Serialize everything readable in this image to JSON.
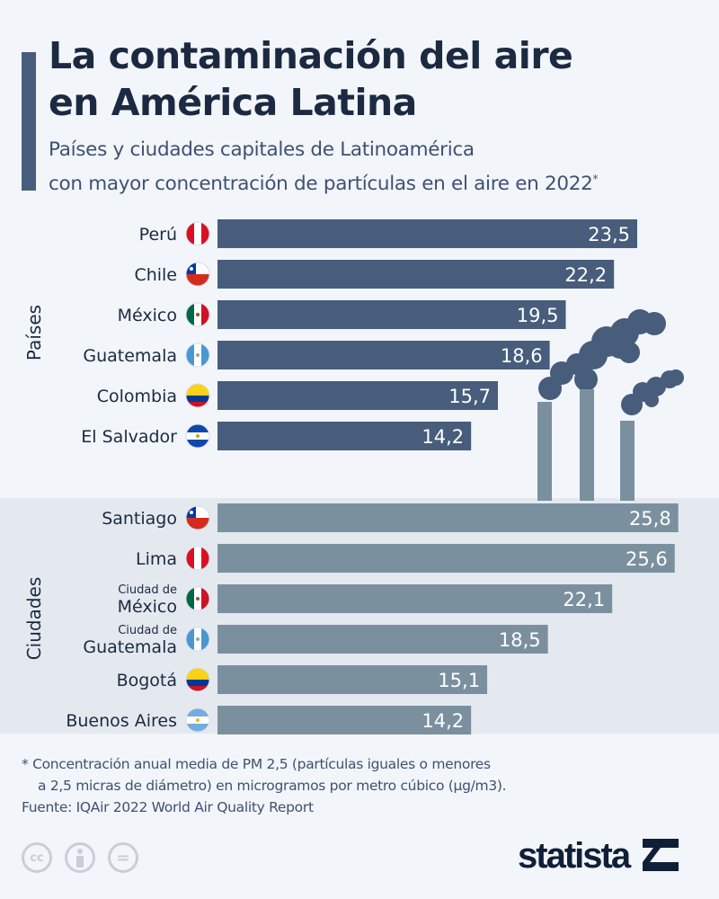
{
  "header": {
    "title_line1": "La contaminación del aire",
    "title_line2": "en América Latina",
    "subtitle_line1": "Países y ciudades capitales de Latinoamérica",
    "subtitle_line2": "con mayor concentración de partículas en el aire en 2022",
    "subtitle_mark": "*"
  },
  "colors": {
    "countries_bar": "#475d7b",
    "cities_bar": "#7b909f",
    "background": "#f2f5fa",
    "cities_background": "#e4e9f0"
  },
  "chart_data": [
    {
      "type": "bar",
      "orientation": "horizontal",
      "group_label": "Países",
      "categories": [
        {
          "label": "Perú",
          "flag": "peru-flag-icon"
        },
        {
          "label": "Chile",
          "flag": "chile-flag-icon"
        },
        {
          "label": "México",
          "flag": "mexico-flag-icon"
        },
        {
          "label": "Guatemala",
          "flag": "guatemala-flag-icon"
        },
        {
          "label": "Colombia",
          "flag": "colombia-flag-icon"
        },
        {
          "label": "El Salvador",
          "flag": "el-salvador-flag-icon"
        }
      ],
      "values": [
        23.5,
        22.2,
        19.5,
        18.6,
        15.7,
        14.2
      ],
      "value_labels": [
        "23,5",
        "22,2",
        "19,5",
        "18,6",
        "15,7",
        "14,2"
      ]
    },
    {
      "type": "bar",
      "orientation": "horizontal",
      "group_label": "Ciudades",
      "categories": [
        {
          "label": "Santiago",
          "flag": "chile-flag-icon"
        },
        {
          "label": "Lima",
          "flag": "peru-flag-icon"
        },
        {
          "prefix": "Ciudad de",
          "label": "México",
          "flag": "mexico-flag-icon"
        },
        {
          "prefix": "Ciudad de",
          "label": "Guatemala",
          "flag": "guatemala-flag-icon"
        },
        {
          "label": "Bogotá",
          "flag": "colombia-flag-icon"
        },
        {
          "label": "Buenos Aires",
          "flag": "argentina-flag-icon"
        }
      ],
      "values": [
        25.8,
        25.6,
        22.1,
        18.5,
        15.1,
        14.2
      ],
      "value_labels": [
        "25,8",
        "25,6",
        "22,1",
        "18,5",
        "15,1",
        "14,2"
      ]
    }
  ],
  "footer": {
    "note_line1": "* Concentración anual media de PM 2,5 (partículas iguales o menores",
    "note_line2": "a 2,5 micras de diámetro) en microgramos por metro cúbico (µg/m3).",
    "source": "Fuente: IQAir 2022 World Air Quality Report",
    "license_icons": [
      "cc-icon",
      "attribution-icon",
      "no-derivatives-icon"
    ],
    "cc_text": "cc",
    "nd_text": "=",
    "logo": "statista"
  }
}
